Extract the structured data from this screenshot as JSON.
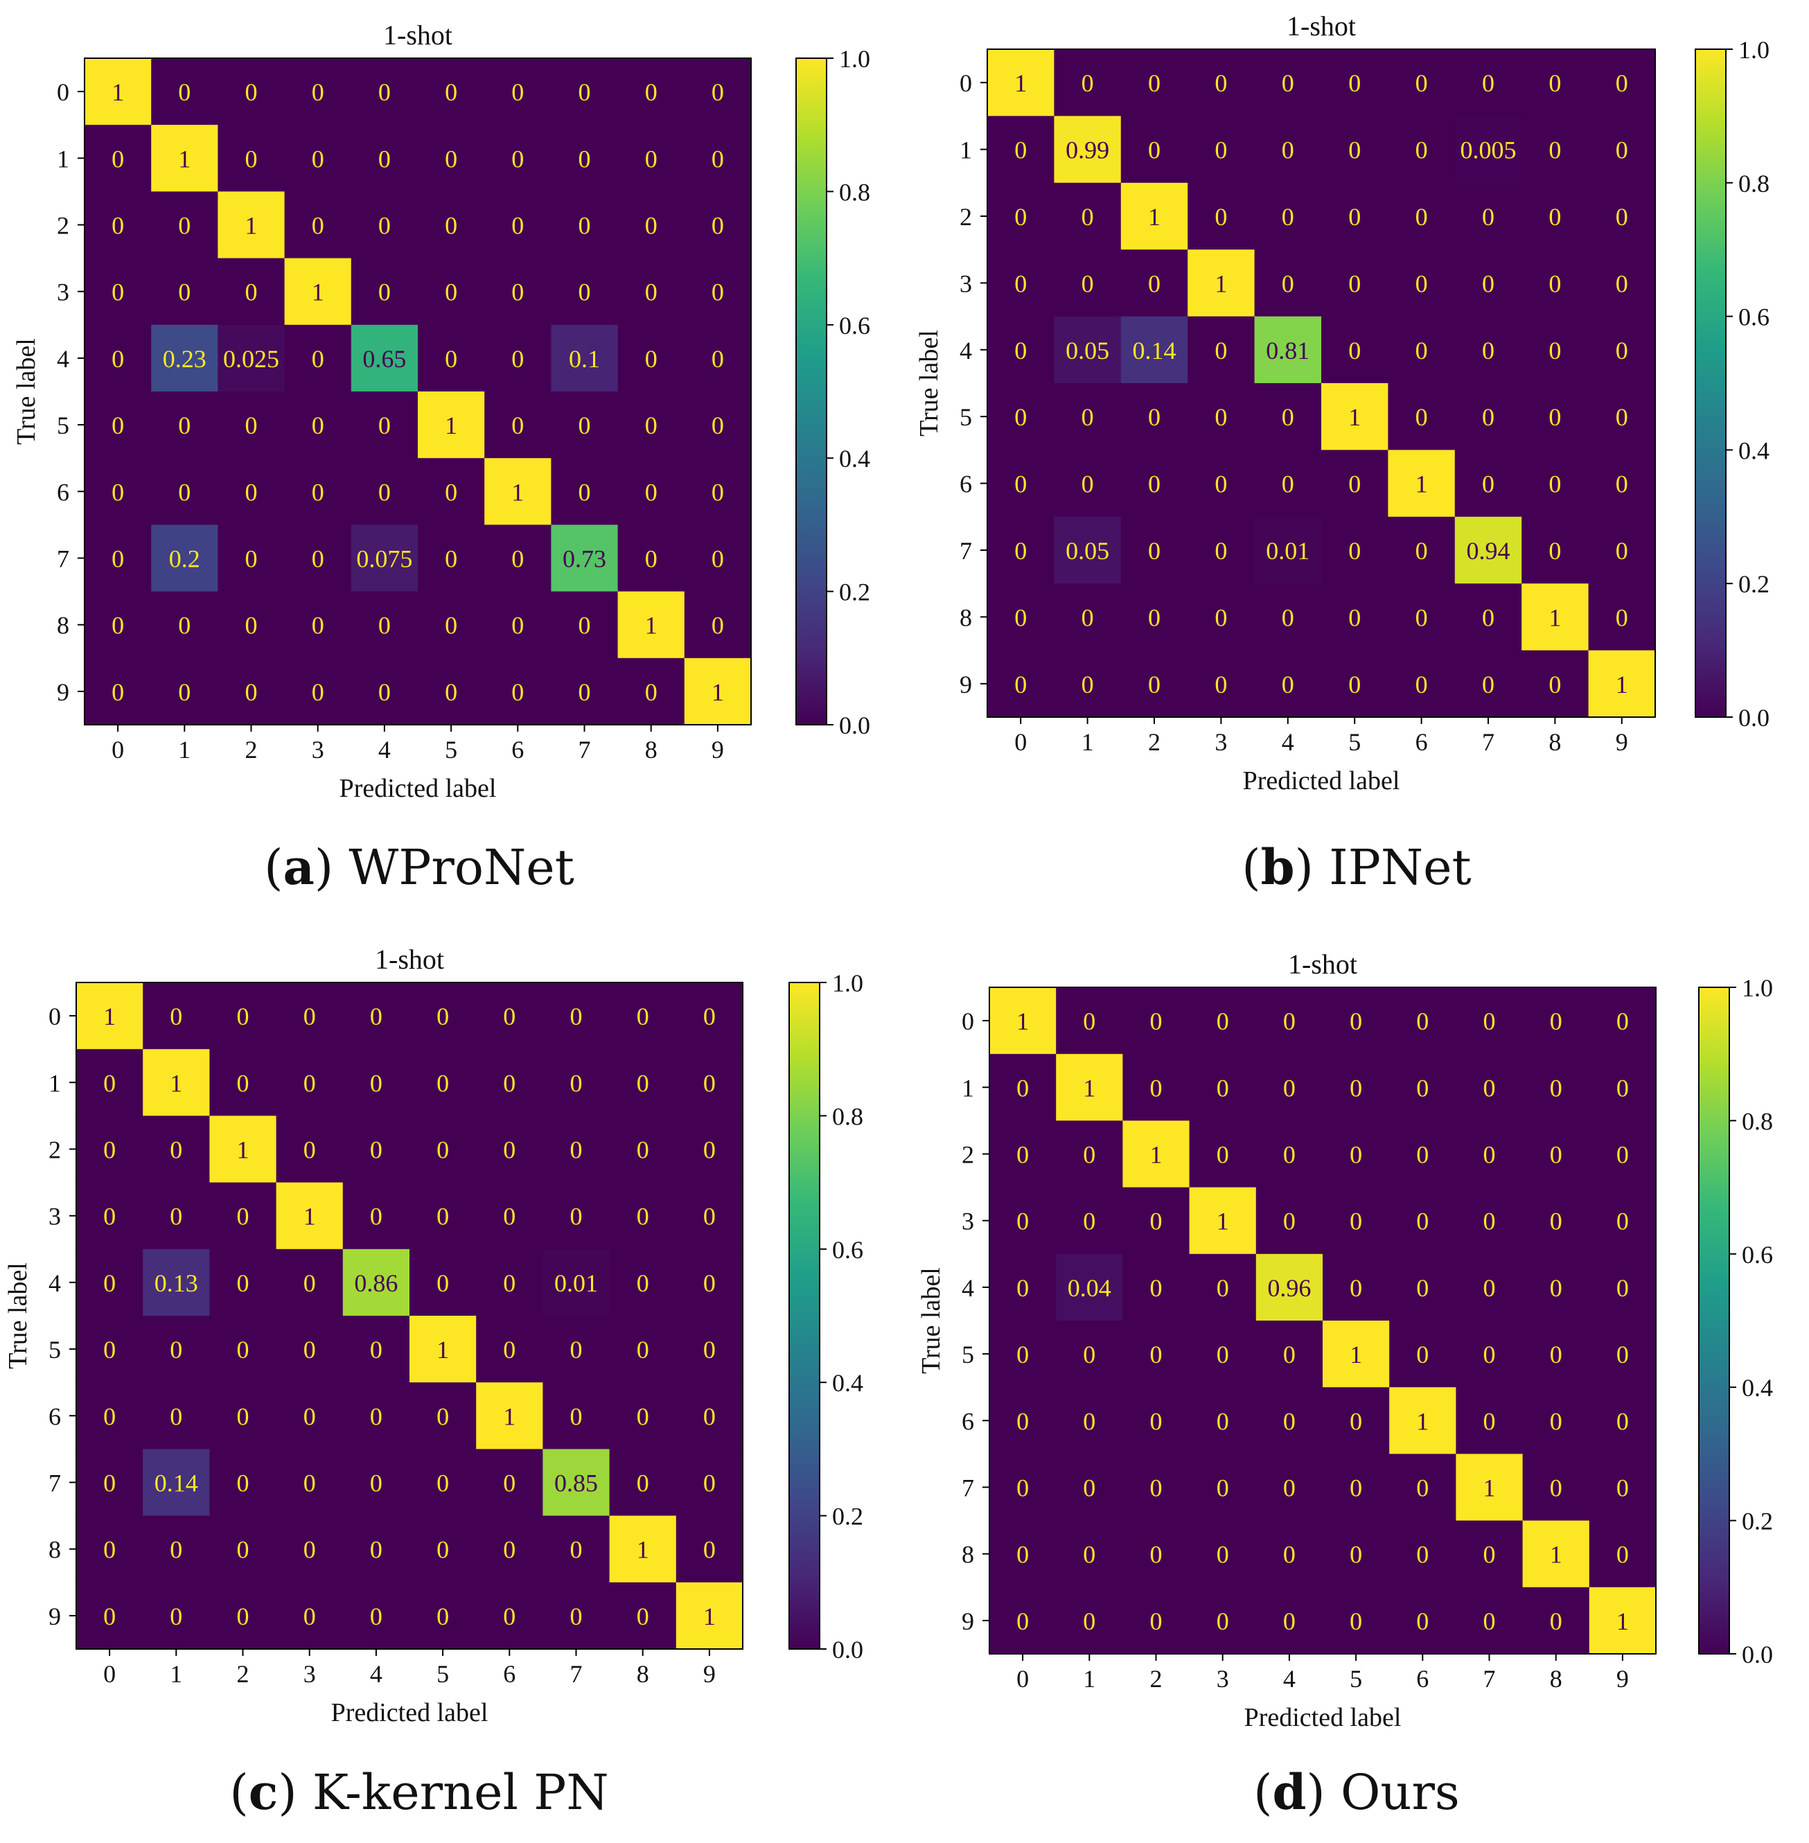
{
  "figure": {
    "panels": [
      {
        "tag": "a",
        "method": "WProNet"
      },
      {
        "tag": "b",
        "method": "IPNet"
      },
      {
        "tag": "c",
        "method": "K-kernel PN"
      },
      {
        "tag": "d",
        "method": "Ours"
      }
    ]
  },
  "colors": {
    "viridis": [
      "#440154",
      "#482878",
      "#3e4989",
      "#31688e",
      "#26828e",
      "#1f9e89",
      "#35b779",
      "#6ece58",
      "#b5de2b",
      "#fde725"
    ],
    "label_light": "#fde725",
    "label_dark": "#440154",
    "text": "#111111"
  },
  "chart_data": [
    {
      "type": "heatmap",
      "title": "1-shot",
      "xlabel": "Predicted label",
      "ylabel": "True label",
      "x_ticks": [
        "0",
        "1",
        "2",
        "3",
        "4",
        "5",
        "6",
        "7",
        "8",
        "9"
      ],
      "y_ticks": [
        "0",
        "1",
        "2",
        "3",
        "4",
        "5",
        "6",
        "7",
        "8",
        "9"
      ],
      "colorbar": {
        "range": [
          0.0,
          1.0
        ],
        "ticks": [
          "0.0",
          "0.2",
          "0.4",
          "0.6",
          "0.8",
          "1.0"
        ]
      },
      "labels": [
        [
          "1",
          "0",
          "0",
          "0",
          "0",
          "0",
          "0",
          "0",
          "0",
          "0"
        ],
        [
          "0",
          "1",
          "0",
          "0",
          "0",
          "0",
          "0",
          "0",
          "0",
          "0"
        ],
        [
          "0",
          "0",
          "1",
          "0",
          "0",
          "0",
          "0",
          "0",
          "0",
          "0"
        ],
        [
          "0",
          "0",
          "0",
          "1",
          "0",
          "0",
          "0",
          "0",
          "0",
          "0"
        ],
        [
          "0",
          "0.23",
          "0.025",
          "0",
          "0.65",
          "0",
          "0",
          "0.1",
          "0",
          "0"
        ],
        [
          "0",
          "0",
          "0",
          "0",
          "0",
          "1",
          "0",
          "0",
          "0",
          "0"
        ],
        [
          "0",
          "0",
          "0",
          "0",
          "0",
          "0",
          "1",
          "0",
          "0",
          "0"
        ],
        [
          "0",
          "0.2",
          "0",
          "0",
          "0.075",
          "0",
          "0",
          "0.73",
          "0",
          "0"
        ],
        [
          "0",
          "0",
          "0",
          "0",
          "0",
          "0",
          "0",
          "0",
          "1",
          "0"
        ],
        [
          "0",
          "0",
          "0",
          "0",
          "0",
          "0",
          "0",
          "0",
          "0",
          "1"
        ]
      ]
    },
    {
      "type": "heatmap",
      "title": "1-shot",
      "xlabel": "Predicted label",
      "ylabel": "True label",
      "x_ticks": [
        "0",
        "1",
        "2",
        "3",
        "4",
        "5",
        "6",
        "7",
        "8",
        "9"
      ],
      "y_ticks": [
        "0",
        "1",
        "2",
        "3",
        "4",
        "5",
        "6",
        "7",
        "8",
        "9"
      ],
      "colorbar": {
        "range": [
          0.0,
          1.0
        ],
        "ticks": [
          "0.0",
          "0.2",
          "0.4",
          "0.6",
          "0.8",
          "1.0"
        ]
      },
      "labels": [
        [
          "1",
          "0",
          "0",
          "0",
          "0",
          "0",
          "0",
          "0",
          "0",
          "0"
        ],
        [
          "0",
          "0.99",
          "0",
          "0",
          "0",
          "0",
          "0",
          "0.005",
          "0",
          "0"
        ],
        [
          "0",
          "0",
          "1",
          "0",
          "0",
          "0",
          "0",
          "0",
          "0",
          "0"
        ],
        [
          "0",
          "0",
          "0",
          "1",
          "0",
          "0",
          "0",
          "0",
          "0",
          "0"
        ],
        [
          "0",
          "0.05",
          "0.14",
          "0",
          "0.81",
          "0",
          "0",
          "0",
          "0",
          "0"
        ],
        [
          "0",
          "0",
          "0",
          "0",
          "0",
          "1",
          "0",
          "0",
          "0",
          "0"
        ],
        [
          "0",
          "0",
          "0",
          "0",
          "0",
          "0",
          "1",
          "0",
          "0",
          "0"
        ],
        [
          "0",
          "0.05",
          "0",
          "0",
          "0.01",
          "0",
          "0",
          "0.94",
          "0",
          "0"
        ],
        [
          "0",
          "0",
          "0",
          "0",
          "0",
          "0",
          "0",
          "0",
          "1",
          "0"
        ],
        [
          "0",
          "0",
          "0",
          "0",
          "0",
          "0",
          "0",
          "0",
          "0",
          "1"
        ]
      ]
    },
    {
      "type": "heatmap",
      "title": "1-shot",
      "xlabel": "Predicted label",
      "ylabel": "True label",
      "x_ticks": [
        "0",
        "1",
        "2",
        "3",
        "4",
        "5",
        "6",
        "7",
        "8",
        "9"
      ],
      "y_ticks": [
        "0",
        "1",
        "2",
        "3",
        "4",
        "5",
        "6",
        "7",
        "8",
        "9"
      ],
      "colorbar": {
        "range": [
          0.0,
          1.0
        ],
        "ticks": [
          "0.0",
          "0.2",
          "0.4",
          "0.6",
          "0.8",
          "1.0"
        ]
      },
      "labels": [
        [
          "1",
          "0",
          "0",
          "0",
          "0",
          "0",
          "0",
          "0",
          "0",
          "0"
        ],
        [
          "0",
          "1",
          "0",
          "0",
          "0",
          "0",
          "0",
          "0",
          "0",
          "0"
        ],
        [
          "0",
          "0",
          "1",
          "0",
          "0",
          "0",
          "0",
          "0",
          "0",
          "0"
        ],
        [
          "0",
          "0",
          "0",
          "1",
          "0",
          "0",
          "0",
          "0",
          "0",
          "0"
        ],
        [
          "0",
          "0.13",
          "0",
          "0",
          "0.86",
          "0",
          "0",
          "0.01",
          "0",
          "0"
        ],
        [
          "0",
          "0",
          "0",
          "0",
          "0",
          "1",
          "0",
          "0",
          "0",
          "0"
        ],
        [
          "0",
          "0",
          "0",
          "0",
          "0",
          "0",
          "1",
          "0",
          "0",
          "0"
        ],
        [
          "0",
          "0.14",
          "0",
          "0",
          "0",
          "0",
          "0",
          "0.85",
          "0",
          "0"
        ],
        [
          "0",
          "0",
          "0",
          "0",
          "0",
          "0",
          "0",
          "0",
          "1",
          "0"
        ],
        [
          "0",
          "0",
          "0",
          "0",
          "0",
          "0",
          "0",
          "0",
          "0",
          "1"
        ]
      ]
    },
    {
      "type": "heatmap",
      "title": "1-shot",
      "xlabel": "Predicted label",
      "ylabel": "True label",
      "x_ticks": [
        "0",
        "1",
        "2",
        "3",
        "4",
        "5",
        "6",
        "7",
        "8",
        "9"
      ],
      "y_ticks": [
        "0",
        "1",
        "2",
        "3",
        "4",
        "5",
        "6",
        "7",
        "8",
        "9"
      ],
      "colorbar": {
        "range": [
          0.0,
          1.0
        ],
        "ticks": [
          "0.0",
          "0.2",
          "0.4",
          "0.6",
          "0.8",
          "1.0"
        ]
      },
      "labels": [
        [
          "1",
          "0",
          "0",
          "0",
          "0",
          "0",
          "0",
          "0",
          "0",
          "0"
        ],
        [
          "0",
          "1",
          "0",
          "0",
          "0",
          "0",
          "0",
          "0",
          "0",
          "0"
        ],
        [
          "0",
          "0",
          "1",
          "0",
          "0",
          "0",
          "0",
          "0",
          "0",
          "0"
        ],
        [
          "0",
          "0",
          "0",
          "1",
          "0",
          "0",
          "0",
          "0",
          "0",
          "0"
        ],
        [
          "0",
          "0.04",
          "0",
          "0",
          "0.96",
          "0",
          "0",
          "0",
          "0",
          "0"
        ],
        [
          "0",
          "0",
          "0",
          "0",
          "0",
          "1",
          "0",
          "0",
          "0",
          "0"
        ],
        [
          "0",
          "0",
          "0",
          "0",
          "0",
          "0",
          "1",
          "0",
          "0",
          "0"
        ],
        [
          "0",
          "0",
          "0",
          "0",
          "0",
          "0",
          "0",
          "1",
          "0",
          "0"
        ],
        [
          "0",
          "0",
          "0",
          "0",
          "0",
          "0",
          "0",
          "0",
          "1",
          "0"
        ],
        [
          "0",
          "0",
          "0",
          "0",
          "0",
          "0",
          "0",
          "0",
          "0",
          "1"
        ]
      ]
    }
  ]
}
